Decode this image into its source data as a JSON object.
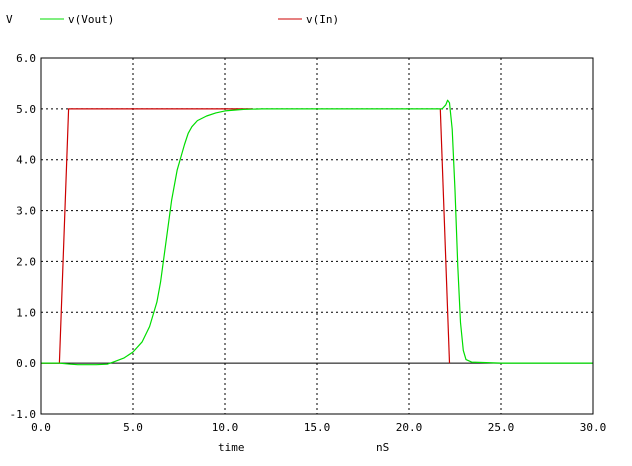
{
  "chart_data": {
    "type": "line",
    "legend_placement": "top",
    "y_unit": "V",
    "xlabel": "time",
    "x_unit": "nS",
    "xlim": [
      0,
      30
    ],
    "ylim": [
      -1,
      6
    ],
    "x_ticks": [
      "0.0",
      "5.0",
      "10.0",
      "15.0",
      "20.0",
      "25.0",
      "30.0"
    ],
    "y_ticks": [
      "-1.0",
      "0.0",
      "1.0",
      "2.0",
      "3.0",
      "4.0",
      "5.0",
      "6.0"
    ],
    "grid": true,
    "series": [
      {
        "name": "v(Vout)",
        "color": "#00dd00",
        "x": [
          0,
          1.0,
          1.6,
          2.0,
          3.0,
          3.6,
          4.0,
          4.5,
          5.0,
          5.5,
          5.9,
          6.3,
          6.5,
          6.8,
          7.1,
          7.4,
          7.8,
          8.0,
          8.2,
          8.5,
          9.0,
          9.5,
          10.0,
          11.0,
          12.0,
          15.0,
          20.0,
          21.8,
          22.0,
          22.1,
          22.2,
          22.35,
          22.5,
          22.65,
          22.8,
          22.95,
          23.1,
          23.4,
          25.0,
          30.0
        ],
        "y": [
          0.0,
          0.0,
          -0.02,
          -0.03,
          -0.03,
          -0.02,
          0.03,
          0.1,
          0.22,
          0.42,
          0.72,
          1.2,
          1.6,
          2.4,
          3.2,
          3.8,
          4.3,
          4.52,
          4.65,
          4.77,
          4.86,
          4.92,
          4.96,
          4.99,
          5.0,
          5.0,
          5.0,
          5.0,
          5.08,
          5.17,
          5.12,
          4.6,
          3.4,
          1.9,
          0.8,
          0.25,
          0.07,
          0.02,
          0.0,
          0.0
        ]
      },
      {
        "name": "v(In)",
        "color": "#cc0000",
        "x": [
          0,
          1.0,
          1.5,
          11.5
        ],
        "y": [
          0.0,
          0.0,
          5.0,
          5.0
        ],
        "x2": [
          21.7,
          22.2
        ],
        "y2": [
          5.0,
          0.0
        ]
      }
    ]
  }
}
